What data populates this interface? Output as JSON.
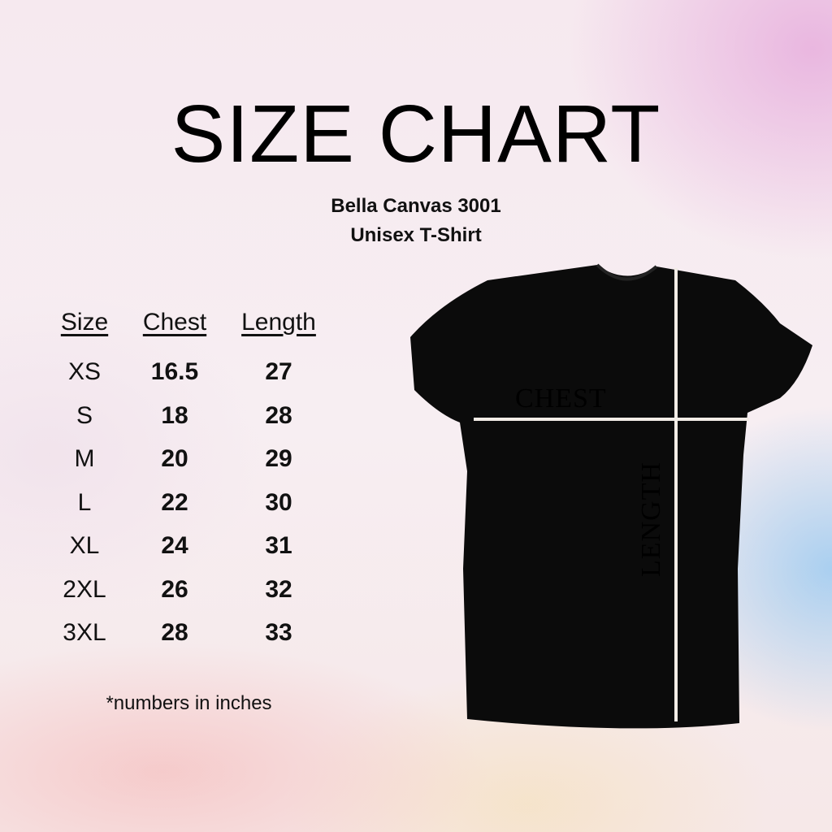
{
  "title": "SIZE CHART",
  "subtitle_line1": "Bella Canvas 3001",
  "subtitle_line2": "Unisex T-Shirt",
  "table": {
    "headers": [
      "Size",
      "Chest",
      "Length"
    ],
    "rows": [
      [
        "XS",
        "16.5",
        "27"
      ],
      [
        "S",
        "18",
        "28"
      ],
      [
        "M",
        "20",
        "29"
      ],
      [
        "L",
        "22",
        "30"
      ],
      [
        "XL",
        "24",
        "31"
      ],
      [
        "2XL",
        "26",
        "32"
      ],
      [
        "3XL",
        "28",
        "33"
      ]
    ]
  },
  "footnote": "*numbers in inches",
  "diagram": {
    "chest_label": "CHEST",
    "length_label": "LENGTH",
    "shirt_color": "#0b0b0b",
    "line_color": "#f2ece6"
  }
}
